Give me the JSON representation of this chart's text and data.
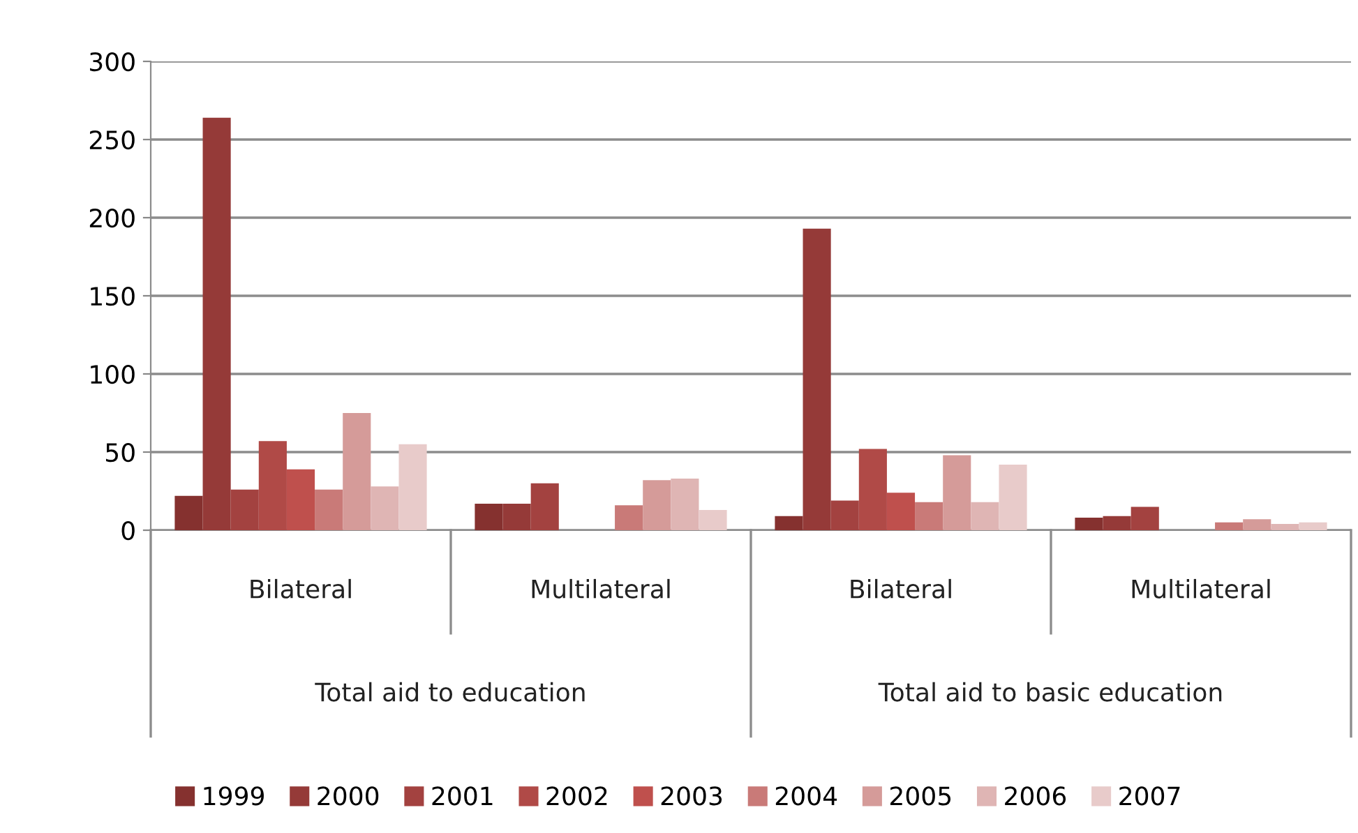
{
  "chart_data": {
    "type": "bar",
    "categories": [
      "Bilateral",
      "Multilateral",
      "Bilateral",
      "Multilateral"
    ],
    "series": [
      {
        "name": "1999",
        "color": "#85312f",
        "values": [
          22,
          17,
          9,
          8
        ]
      },
      {
        "name": "2000",
        "color": "#953a38",
        "values": [
          264,
          17,
          193,
          9
        ]
      },
      {
        "name": "2001",
        "color": "#a34240",
        "values": [
          26,
          30,
          19,
          15
        ]
      },
      {
        "name": "2002",
        "color": "#b04a47",
        "values": [
          57,
          null,
          52,
          null
        ]
      },
      {
        "name": "2003",
        "color": "#bf504d",
        "values": [
          39,
          null,
          24,
          null
        ]
      },
      {
        "name": "2004",
        "color": "#c97a78",
        "values": [
          26,
          16,
          18,
          5
        ]
      },
      {
        "name": "2005",
        "color": "#d59b99",
        "values": [
          75,
          32,
          48,
          7
        ]
      },
      {
        "name": "2006",
        "color": "#dfb5b4",
        "values": [
          28,
          33,
          18,
          4
        ]
      },
      {
        "name": "2007",
        "color": "#e8cbca",
        "values": [
          55,
          13,
          42,
          5
        ]
      }
    ],
    "annotations": [
      "Total aid to education",
      "Total aid to basic education"
    ],
    "ylim": [
      0,
      300
    ],
    "yticks": [
      0,
      50,
      100,
      150,
      200,
      250,
      300
    ],
    "grid": "y",
    "legend": "bottom"
  }
}
